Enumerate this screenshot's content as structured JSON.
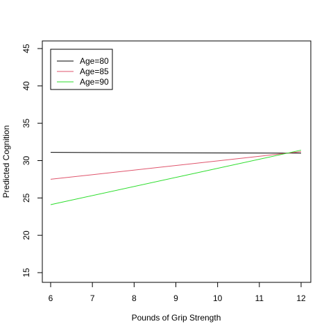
{
  "chart_data": {
    "type": "line",
    "title": "",
    "xlabel": "Pounds of Grip Strength",
    "ylabel": "Predicted Cognition",
    "xlim": [
      6,
      12
    ],
    "ylim": [
      15,
      45
    ],
    "xticks": [
      6,
      7,
      8,
      9,
      10,
      11,
      12
    ],
    "yticks": [
      15,
      20,
      25,
      30,
      35,
      40,
      45
    ],
    "grid": false,
    "legend_position": "top-left",
    "series": [
      {
        "name": "Age=80",
        "color": "#000000",
        "x": [
          6,
          12
        ],
        "y": [
          31.1,
          31.0
        ]
      },
      {
        "name": "Age=85",
        "color": "#DF536B",
        "x": [
          6,
          12
        ],
        "y": [
          27.5,
          31.2
        ]
      },
      {
        "name": "Age=90",
        "color": "#2ADD2A",
        "x": [
          6,
          12
        ],
        "y": [
          24.1,
          31.4
        ]
      }
    ]
  }
}
